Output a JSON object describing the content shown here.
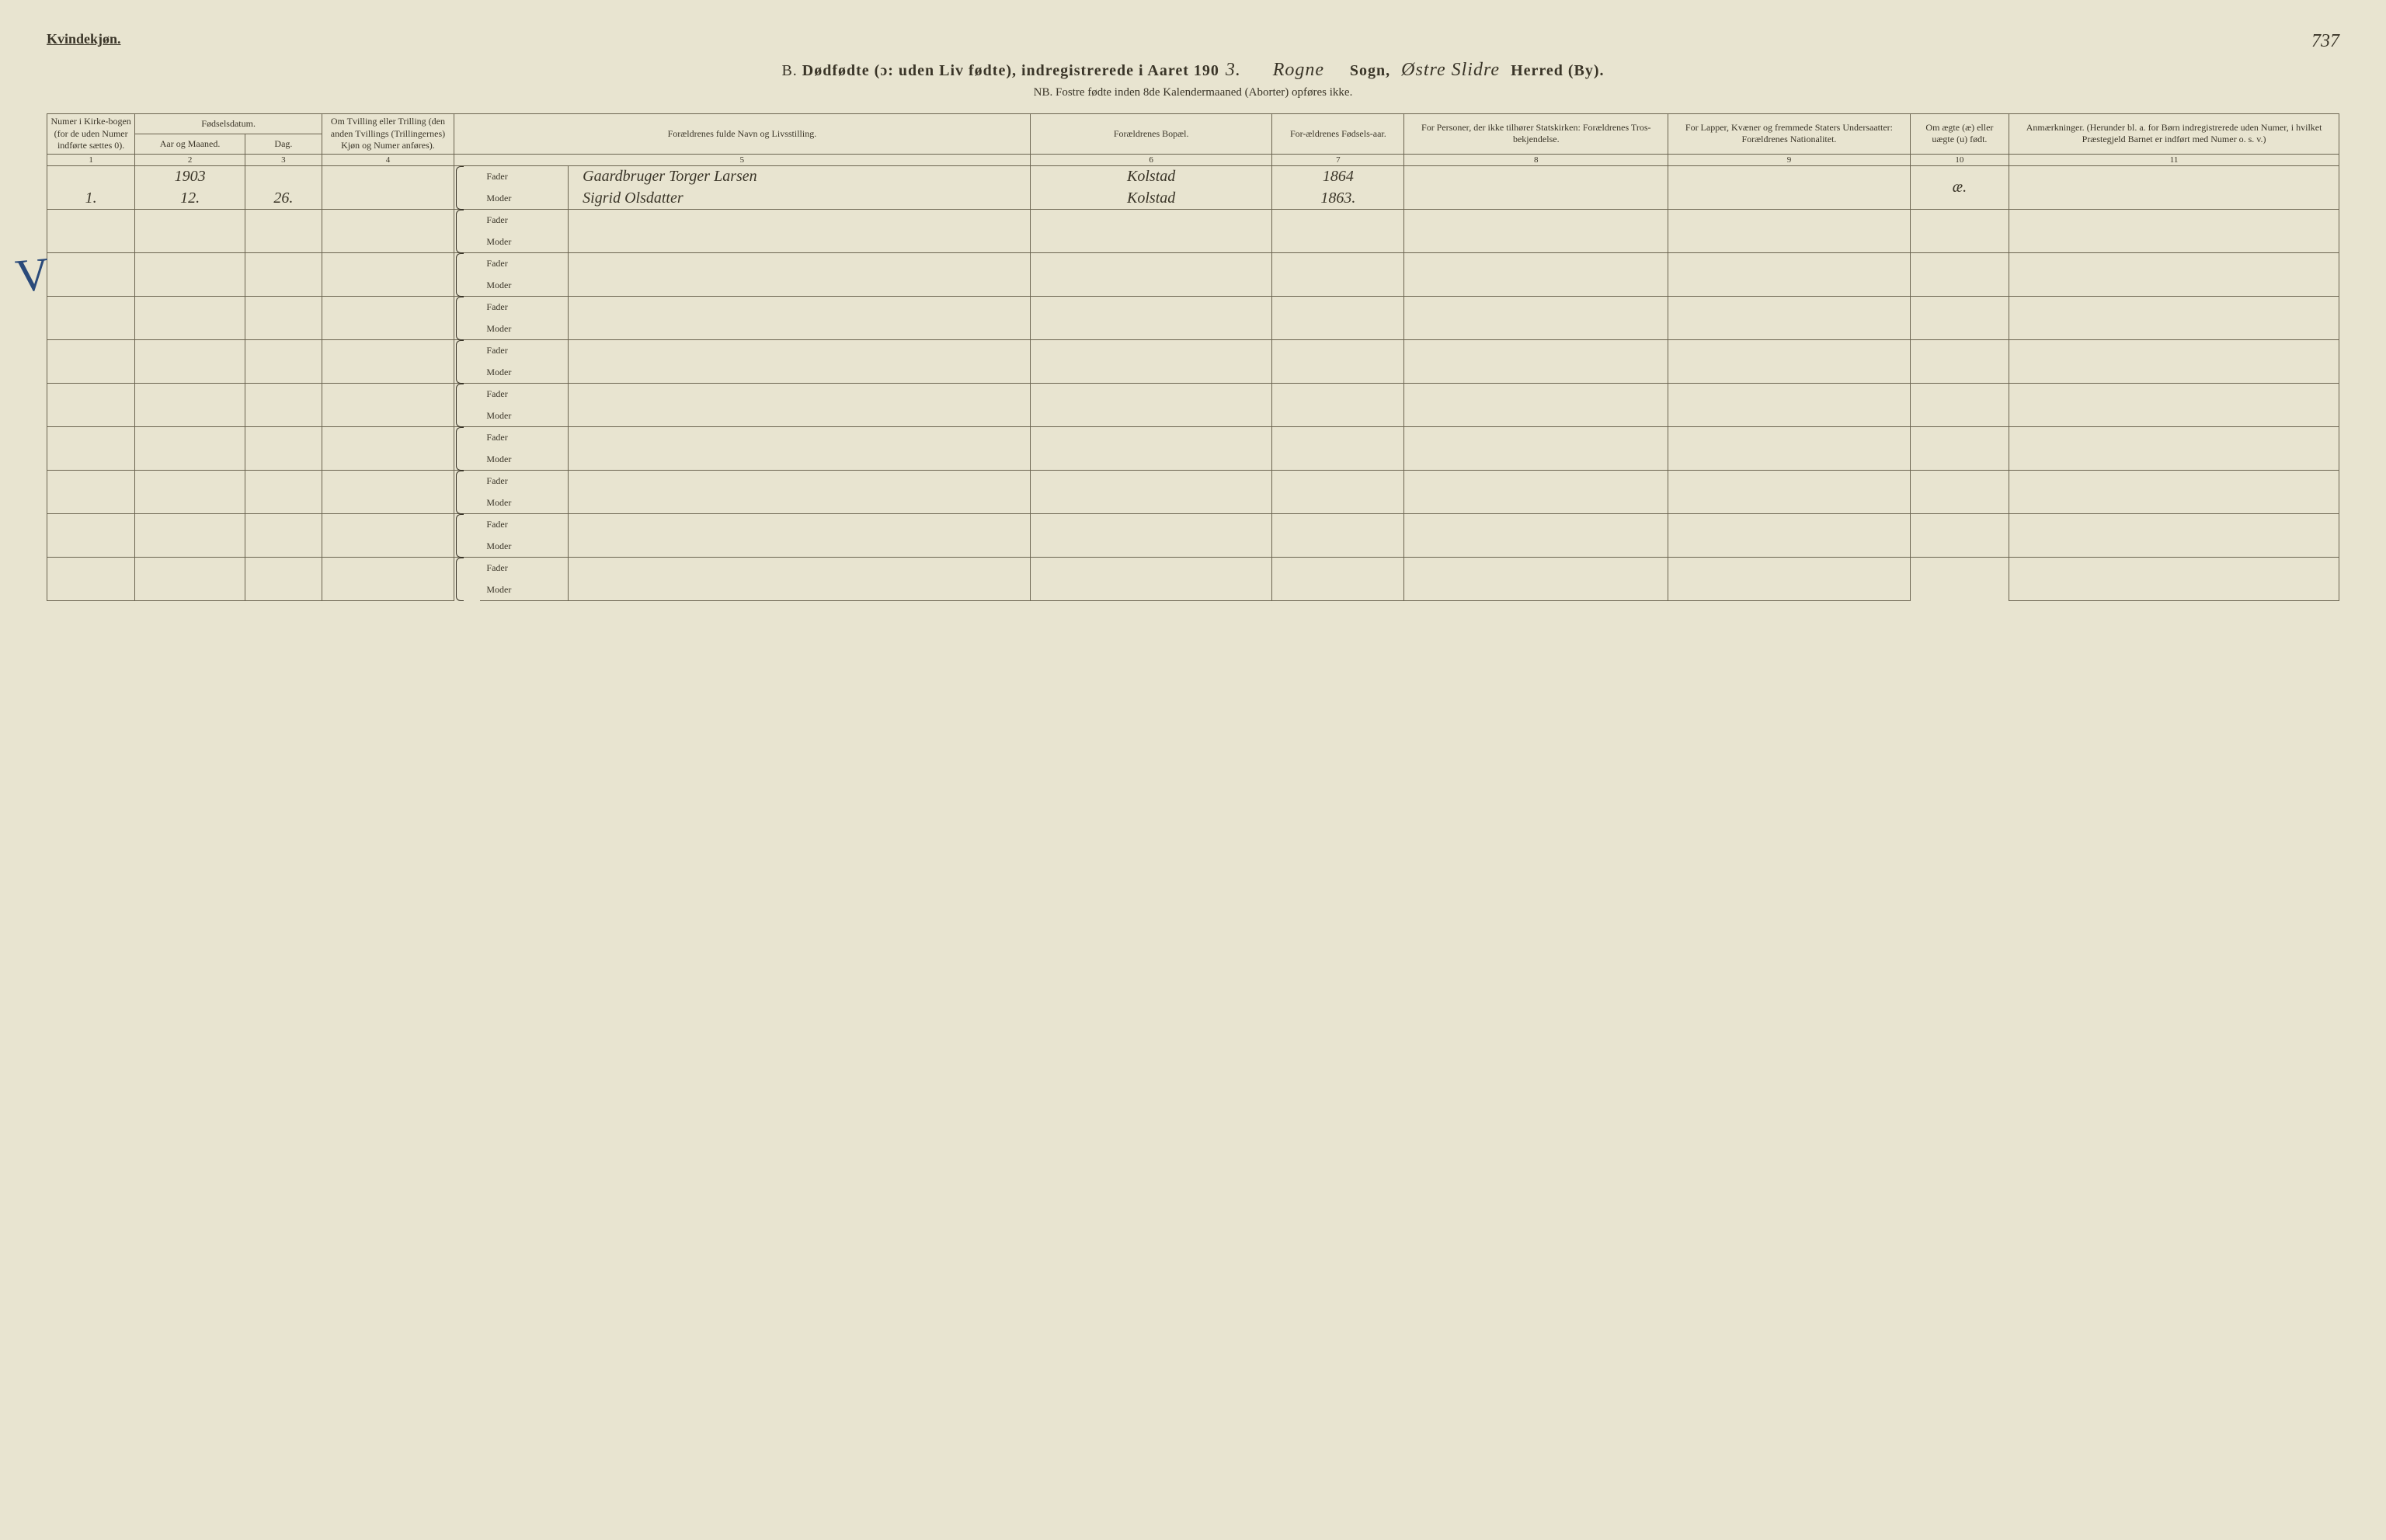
{
  "header": {
    "gender": "Kvindekjøn.",
    "page_number": "737",
    "title_prefix": "B.",
    "title_main": "Dødfødte (ɔ: uden Liv fødte), indregistrerede i Aaret 190",
    "year_digit": "3.",
    "sogn_value": "Rogne",
    "sogn_label": "Sogn,",
    "herred_value": "Østre Slidre",
    "herred_label": "Herred (By).",
    "subtitle": "NB. Fostre fødte inden 8de Kalendermaaned (Aborter) opføres ikke."
  },
  "columns": {
    "c1": "Numer i Kirke-bogen (for de uden Numer indførte sættes 0).",
    "c2_group": "Fødselsdatum.",
    "c2a": "Aar og Maaned.",
    "c2b": "Dag.",
    "c4": "Om Tvilling eller Trilling (den anden Tvillings (Trillingernes) Kjøn og Numer anføres).",
    "c5": "Forældrenes fulde Navn og Livsstilling.",
    "c6": "Forældrenes Bopæl.",
    "c7": "For-ældrenes Fødsels-aar.",
    "c8": "For Personer, der ikke tilhører Statskirken: Forældrenes Tros-bekjendelse.",
    "c9": "For Lapper, Kvæner og fremmede Staters Undersaatter: Forældrenes Nationalitet.",
    "c10": "Om ægte (æ) eller uægte (u) født.",
    "c11": "Anmærkninger. (Herunder bl. a. for Børn indregistrerede uden Numer, i hvilket Præstegjeld Barnet er indført med Numer o. s. v.)"
  },
  "colnums": [
    "1",
    "2",
    "3",
    "4",
    "5",
    "6",
    "7",
    "8",
    "9",
    "10",
    "11"
  ],
  "labels": {
    "fader": "Fader",
    "moder": "Moder"
  },
  "entry": {
    "year": "1903",
    "num": "1.",
    "month": "12.",
    "day": "26.",
    "fader_name": "Gaardbruger Torger Larsen",
    "fader_bopel": "Kolstad",
    "fader_faar": "1864",
    "moder_name": "Sigrid Olsdatter",
    "moder_bopel": "Kolstad",
    "moder_faar": "1863.",
    "aegte": "æ."
  },
  "checkmark": "V",
  "style": {
    "widths": {
      "c1": "4%",
      "c2a": "5%",
      "c2b": "3.5%",
      "c4": "6%",
      "brace": "1.2%",
      "fm": "4%",
      "c5": "21%",
      "c6": "11%",
      "c7": "6%",
      "c8": "12%",
      "c9": "11%",
      "c10": "4.5%",
      "c11": "15%"
    }
  }
}
